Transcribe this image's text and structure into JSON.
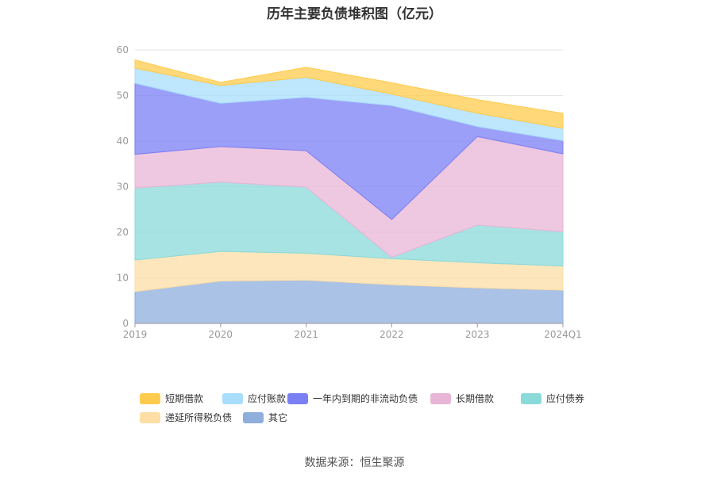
{
  "chart_data": {
    "type": "area",
    "title": "历年主要负债堆积图（亿元）",
    "x": [
      "2019",
      "2020",
      "2021",
      "2022",
      "2023",
      "2024Q1"
    ],
    "ylim": [
      0,
      60
    ],
    "yticks": [
      0,
      10,
      20,
      30,
      40,
      50,
      60
    ],
    "grid": true,
    "legend_position": "bottom",
    "stacked": true,
    "series": [
      {
        "name": "其它",
        "color": "#8EAEDC",
        "values": [
          7.0,
          9.3,
          9.5,
          8.5,
          7.8,
          7.3
        ]
      },
      {
        "name": "递延所得税负债",
        "color": "#FDDEA5",
        "values": [
          6.9,
          6.5,
          5.9,
          5.7,
          5.5,
          5.3
        ]
      },
      {
        "name": "应付债券",
        "color": "#8ADADA",
        "values": [
          15.8,
          15.2,
          14.5,
          0.3,
          8.3,
          7.5
        ]
      },
      {
        "name": "长期借款",
        "color": "#E7B5D6",
        "values": [
          7.4,
          7.8,
          8.0,
          8.3,
          19.4,
          17.1
        ]
      },
      {
        "name": "一年内到期的非流动负债",
        "color": "#7B7FF4",
        "values": [
          15.6,
          9.5,
          11.7,
          25.0,
          2.2,
          2.9
        ]
      },
      {
        "name": "应付账款",
        "color": "#A8DEFC",
        "values": [
          3.3,
          3.9,
          4.4,
          2.5,
          2.9,
          2.7
        ]
      },
      {
        "name": "短期借款",
        "color": "#FFCB4C",
        "values": [
          1.8,
          0.7,
          2.2,
          2.5,
          3.0,
          3.3
        ]
      }
    ],
    "legend_order": [
      "短期借款",
      "应付账款",
      "一年内到期的非流动负债",
      "长期借款",
      "应付债券",
      "递延所得税负债",
      "其它"
    ]
  },
  "footer": {
    "source": "数据来源：恒生聚源"
  }
}
